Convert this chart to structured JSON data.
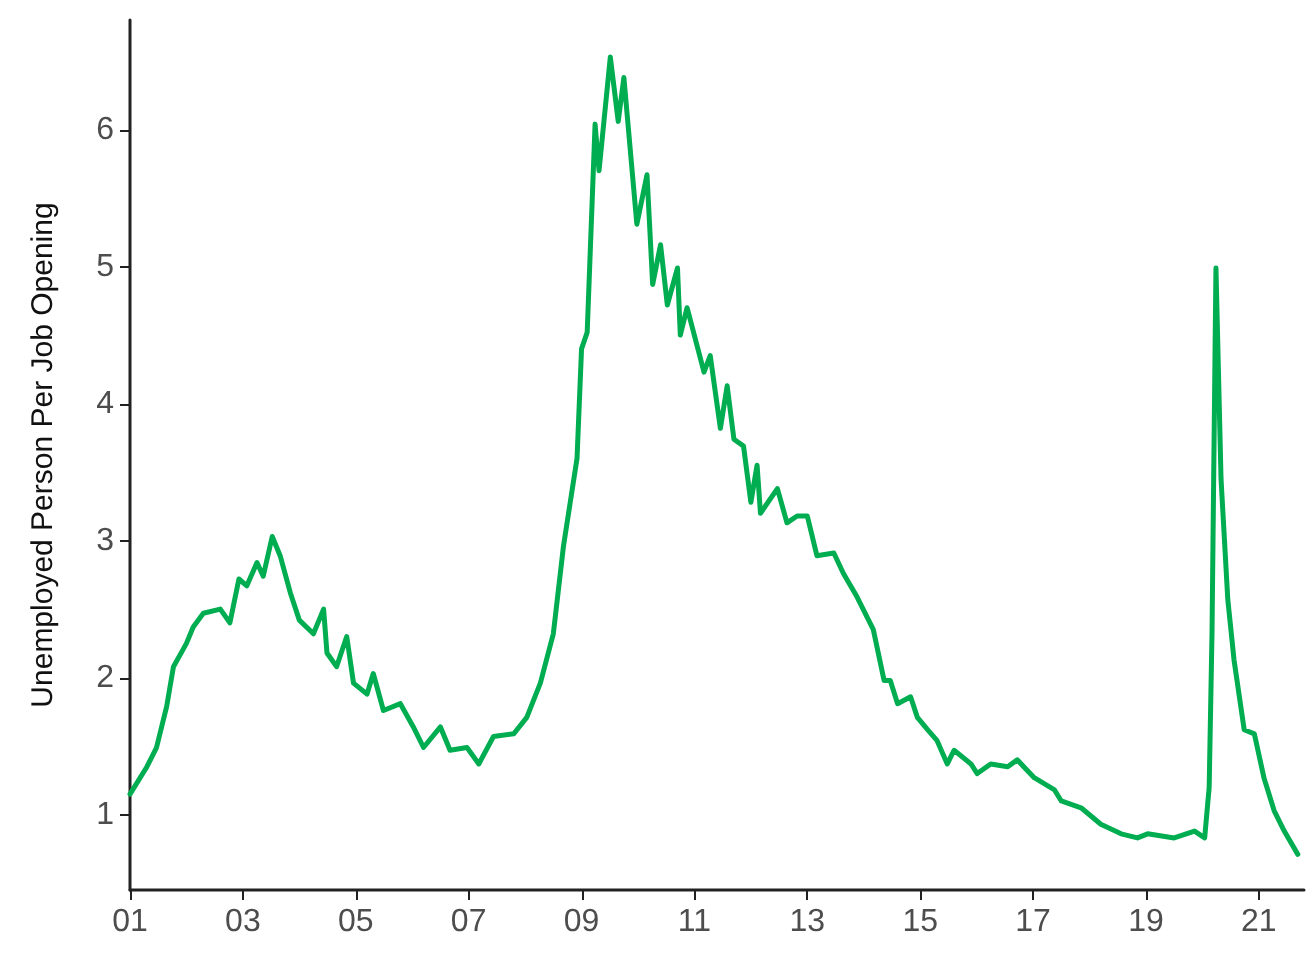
{
  "chart_data": {
    "type": "line",
    "ylabel": "Unemployed Person Per Job Opening",
    "grid": false,
    "marker": "none",
    "line_style": "solid",
    "xlim": [
      2001,
      2021.8
    ],
    "ylim": [
      0.45,
      6.8
    ],
    "xticks": [
      {
        "value": 2001,
        "label": "01"
      },
      {
        "value": 2003,
        "label": "03"
      },
      {
        "value": 2005,
        "label": "05"
      },
      {
        "value": 2007,
        "label": "07"
      },
      {
        "value": 2009,
        "label": "09"
      },
      {
        "value": 2011,
        "label": "11"
      },
      {
        "value": 2013,
        "label": "13"
      },
      {
        "value": 2015,
        "label": "15"
      },
      {
        "value": 2017,
        "label": "17"
      },
      {
        "value": 2019,
        "label": "19"
      },
      {
        "value": 2021,
        "label": "21"
      }
    ],
    "yticks": [
      1,
      2,
      3,
      4,
      5,
      6
    ],
    "series": [
      {
        "color": "#00ad50",
        "x": [
          2001.0,
          2001.3,
          2001.47,
          2001.65,
          2001.77,
          2002.0,
          2002.12,
          2002.3,
          2002.6,
          2002.77,
          2002.93,
          2003.07,
          2003.25,
          2003.36,
          2003.52,
          2003.66,
          2003.84,
          2004.0,
          2004.25,
          2004.43,
          2004.49,
          2004.66,
          2004.84,
          2004.96,
          2005.2,
          2005.31,
          2005.49,
          2005.79,
          2006.02,
          2006.2,
          2006.5,
          2006.67,
          2006.97,
          2007.18,
          2007.44,
          2007.8,
          2008.03,
          2008.27,
          2008.5,
          2008.68,
          2008.92,
          2009.0,
          2009.1,
          2009.24,
          2009.31,
          2009.51,
          2009.65,
          2009.75,
          2009.98,
          2010.16,
          2010.26,
          2010.4,
          2010.52,
          2010.7,
          2010.75,
          2010.87,
          2011.17,
          2011.28,
          2011.46,
          2011.58,
          2011.7,
          2011.87,
          2012.0,
          2012.11,
          2012.17,
          2012.47,
          2012.64,
          2012.82,
          2013.0,
          2013.17,
          2013.47,
          2013.64,
          2013.88,
          2014.17,
          2014.36,
          2014.47,
          2014.6,
          2014.83,
          2014.95,
          2015.13,
          2015.3,
          2015.48,
          2015.6,
          2015.9,
          2016.01,
          2016.25,
          2016.55,
          2016.72,
          2017.02,
          2017.38,
          2017.5,
          2017.85,
          2018.2,
          2018.56,
          2018.85,
          2019.03,
          2019.5,
          2019.86,
          2020.04,
          2020.12,
          2020.17,
          2020.24,
          2020.33,
          2020.45,
          2020.56,
          2020.74,
          2020.92,
          2021.09,
          2021.27,
          2021.45,
          2021.69
        ],
        "values": [
          1.15,
          1.35,
          1.49,
          1.79,
          2.08,
          2.25,
          2.37,
          2.47,
          2.5,
          2.4,
          2.72,
          2.67,
          2.84,
          2.74,
          3.03,
          2.89,
          2.62,
          2.42,
          2.32,
          2.5,
          2.18,
          2.08,
          2.3,
          1.96,
          1.88,
          2.03,
          1.76,
          1.81,
          1.64,
          1.49,
          1.64,
          1.47,
          1.49,
          1.37,
          1.57,
          1.59,
          1.71,
          1.96,
          2.32,
          2.96,
          3.6,
          4.4,
          4.52,
          6.04,
          5.7,
          6.53,
          6.06,
          6.38,
          5.31,
          5.67,
          4.87,
          5.16,
          4.72,
          4.99,
          4.5,
          4.7,
          4.23,
          4.35,
          3.82,
          4.13,
          3.74,
          3.69,
          3.28,
          3.55,
          3.2,
          3.38,
          3.13,
          3.18,
          3.18,
          2.89,
          2.91,
          2.76,
          2.59,
          2.35,
          1.98,
          1.98,
          1.81,
          1.86,
          1.71,
          1.62,
          1.54,
          1.37,
          1.47,
          1.37,
          1.3,
          1.37,
          1.35,
          1.4,
          1.27,
          1.18,
          1.1,
          1.05,
          0.93,
          0.86,
          0.83,
          0.86,
          0.83,
          0.88,
          0.83,
          1.2,
          2.32,
          4.99,
          3.45,
          2.57,
          2.13,
          1.62,
          1.59,
          1.27,
          1.03,
          0.88,
          0.71
        ]
      }
    ]
  }
}
